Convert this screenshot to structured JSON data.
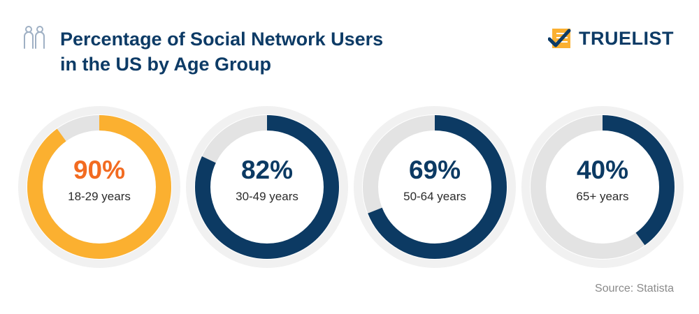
{
  "title_line1": "Percentage of Social Network Users",
  "title_line2": "in the US by Age Group",
  "brand": "TRUELIST",
  "source": "Source: Statista",
  "colors": {
    "title": "#0d3b66",
    "orange_fill": "#fbb030",
    "orange_text": "#f26b21",
    "navy": "#0c3a63",
    "track": "#e3e3e3",
    "halo": "#f1f1f1"
  },
  "icons": {
    "people": "people-icon",
    "logo": "checklist-logo-icon"
  },
  "chart_data": {
    "type": "pie",
    "variant": "donut",
    "items": [
      {
        "label": "18-29 years",
        "value": 90,
        "display": "90%",
        "color": "#fbb030",
        "value_color": "#f26b21"
      },
      {
        "label": "30-49 years",
        "value": 82,
        "display": "82%",
        "color": "#0c3a63",
        "value_color": "#0c3a63"
      },
      {
        "label": "50-64 years",
        "value": 69,
        "display": "69%",
        "color": "#0c3a63",
        "value_color": "#0c3a63"
      },
      {
        "label": "65+ years",
        "value": 40,
        "display": "40%",
        "color": "#0c3a63",
        "value_color": "#0c3a63"
      }
    ]
  }
}
